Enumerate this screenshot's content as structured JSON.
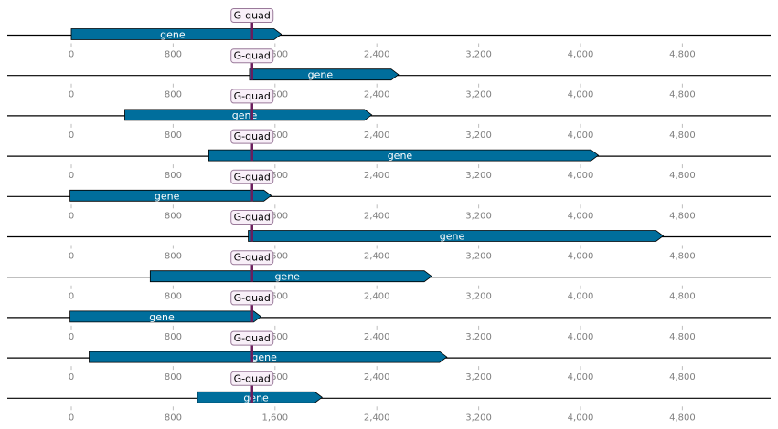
{
  "ticks": {
    "values": [
      0,
      800,
      1600,
      2400,
      3200,
      4000,
      4800
    ],
    "labels": [
      "0",
      "800",
      "1,600",
      "2,400",
      "3,200",
      "4,000",
      "4,800"
    ]
  },
  "colors": {
    "gene_fill": "#006e9c",
    "feature_box_fill": "#f8eff8",
    "feature_box_stroke": "#9a7a9a",
    "marker": "#6b1d5c",
    "axis_line": "#000000",
    "tick_text": "#7f7f7f"
  },
  "axis": {
    "min": -500,
    "max": 5500
  },
  "tracks": [
    {
      "gene": {
        "label": "gene",
        "start": 0,
        "end": 1650
      },
      "feature": {
        "label": "G-quad",
        "position": 1420
      }
    },
    {
      "gene": {
        "label": "gene",
        "start": 1400,
        "end": 2570
      },
      "feature": {
        "label": "G-quad",
        "position": 1420
      }
    },
    {
      "gene": {
        "label": "gene",
        "start": 420,
        "end": 2360
      },
      "feature": {
        "label": "G-quad",
        "position": 1420
      }
    },
    {
      "gene": {
        "label": "gene",
        "start": 1080,
        "end": 4140
      },
      "feature": {
        "label": "G-quad",
        "position": 1420
      }
    },
    {
      "gene": {
        "label": "gene",
        "start": -10,
        "end": 1570
      },
      "feature": {
        "label": "G-quad",
        "position": 1420
      }
    },
    {
      "gene": {
        "label": "gene",
        "start": 1390,
        "end": 4650
      },
      "feature": {
        "label": "G-quad",
        "position": 1420
      }
    },
    {
      "gene": {
        "label": "gene",
        "start": 620,
        "end": 2830
      },
      "feature": {
        "label": "G-quad",
        "position": 1420
      }
    },
    {
      "gene": {
        "label": "gene",
        "start": -10,
        "end": 1490
      },
      "feature": {
        "label": "G-quad",
        "position": 1420
      }
    },
    {
      "gene": {
        "label": "gene",
        "start": 140,
        "end": 2950
      },
      "feature": {
        "label": "G-quad",
        "position": 1420
      }
    },
    {
      "gene": {
        "label": "gene",
        "start": 990,
        "end": 1970
      },
      "feature": {
        "label": "G-quad",
        "position": 1420
      }
    }
  ]
}
